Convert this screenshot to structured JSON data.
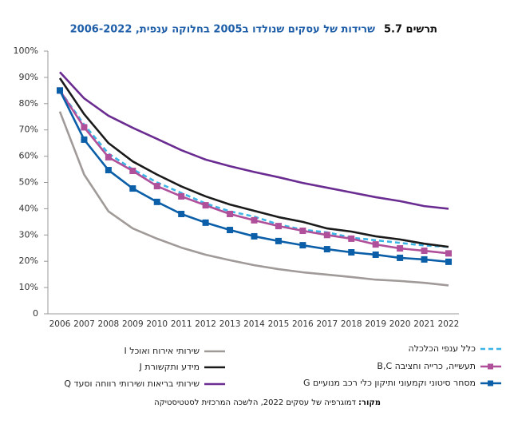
{
  "chart_data": {
    "type": "line",
    "figure_label": "תרשים 5.7",
    "title": "שרידות של עסקים שנולדו ב2005 בחלוקה ענפית, 2006-2022",
    "source_label": "מקור:",
    "source": "דמוגרפיה של עסקים 2022, הלשכה המרכזית לסטטיסטיקה",
    "categories": [
      "2006",
      "2007",
      "2008",
      "2009",
      "2010",
      "2011",
      "2012",
      "2013",
      "2014",
      "2015",
      "2016",
      "2017",
      "2018",
      "2019",
      "2020",
      "2021",
      "2022"
    ],
    "ylim": [
      0,
      100
    ],
    "yticks": [
      0,
      {
        "value": 10,
        "label": "10%"
      },
      {
        "value": 20,
        "label": "20%"
      },
      {
        "value": 30,
        "label": "30%"
      },
      {
        "value": 40,
        "label": "40%"
      },
      {
        "value": 50,
        "label": "50%"
      },
      {
        "value": 60,
        "label": "60%"
      },
      {
        "value": 70,
        "label": "70%"
      },
      {
        "value": 80,
        "label": "80%"
      },
      {
        "value": 90,
        "label": "90%"
      },
      {
        "value": 100,
        "label": "100%"
      }
    ],
    "grid": false,
    "series": [
      {
        "name": "כלל ענפי הכלכלה",
        "color": "#3cb4e6",
        "dash": true,
        "values": [
          85,
          72,
          61,
          55,
          50,
          46,
          42,
          39,
          37,
          34,
          32,
          31,
          29,
          28,
          27,
          26,
          25.5
        ]
      },
      {
        "name": "תעשייה, כרייה וחציבה B,C",
        "color": "#b0509a",
        "marker": "square",
        "values": [
          85,
          71,
          59.6,
          54.4,
          48.6,
          44.7,
          41.3,
          38,
          35.6,
          33.4,
          31.6,
          30,
          28.6,
          26.4,
          24.9,
          24,
          23
        ]
      },
      {
        "name": "מסחר סיטוני וקמעוני ותיקון כלי רכב מנועיים G",
        "color": "#0b5ea8",
        "marker": "square",
        "values": [
          85,
          66.3,
          54.7,
          47.7,
          42.6,
          38,
          34.7,
          31.9,
          29.5,
          27.7,
          26.1,
          24.6,
          23.4,
          22.5,
          21.3,
          20.7,
          19.8
        ]
      },
      {
        "name": "שירותי אירוח ואוכל I",
        "color": "#a09a98",
        "values": [
          77,
          53,
          39,
          32.5,
          28.6,
          25.2,
          22.5,
          20.4,
          18.5,
          17,
          15.8,
          14.9,
          14,
          13,
          12.5,
          11.8,
          10.8
        ]
      },
      {
        "name": "מידע ותקשורת J",
        "color": "#1a1a1a",
        "values": [
          89.7,
          76,
          65,
          58,
          53,
          48.5,
          44.7,
          41.6,
          39.2,
          36.8,
          35,
          32.5,
          31.3,
          29.5,
          28.3,
          26.7,
          25.5
        ]
      },
      {
        "name": "שירותי בריאות ושירותי רווחה וסעד Q",
        "color": "#6a2c91",
        "values": [
          92,
          82,
          75.4,
          70.8,
          66.6,
          62.3,
          58.7,
          56.2,
          54,
          52,
          49.8,
          48,
          46.2,
          44.4,
          42.9,
          41,
          40
        ]
      }
    ]
  }
}
